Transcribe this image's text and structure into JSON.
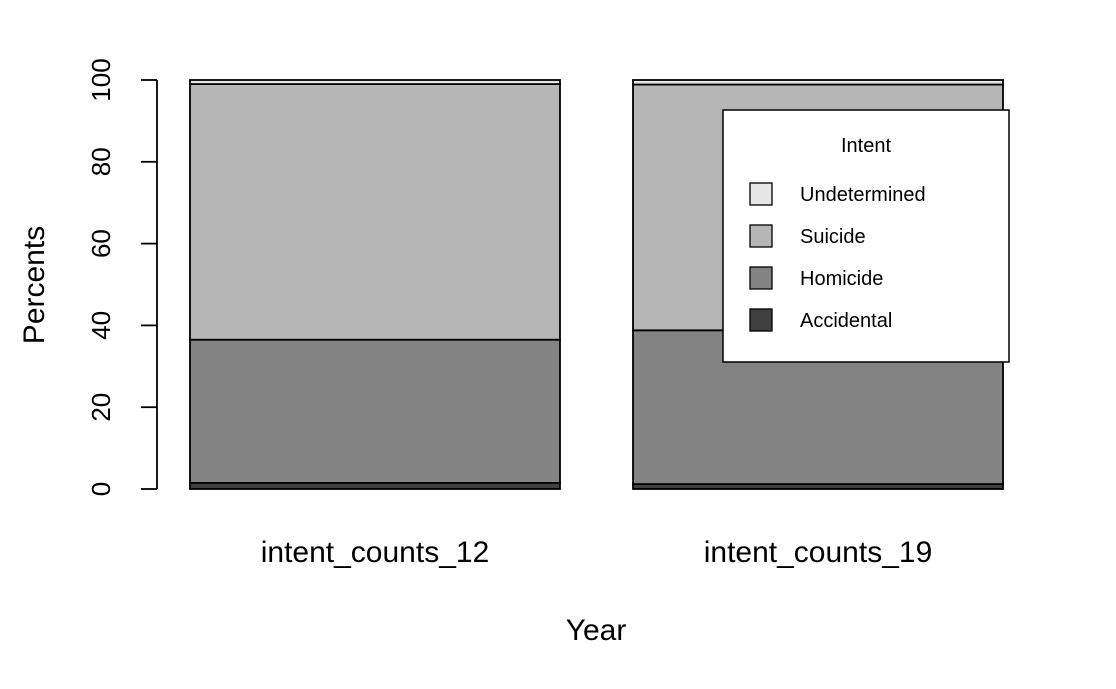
{
  "chart_data": {
    "type": "bar",
    "stacked": true,
    "title": "",
    "xlabel": "Year",
    "ylabel": "Percents",
    "ylim": [
      0,
      100
    ],
    "yticks": [
      0,
      20,
      40,
      60,
      80,
      100
    ],
    "categories": [
      "intent_counts_12",
      "intent_counts_19"
    ],
    "series": [
      {
        "name": "Accidental",
        "color": "#404040",
        "values": [
          1.5,
          1.2
        ]
      },
      {
        "name": "Homicide",
        "color": "#838383",
        "values": [
          35.0,
          37.6
        ]
      },
      {
        "name": "Suicide",
        "color": "#b6b6b6",
        "values": [
          62.5,
          60.1
        ]
      },
      {
        "name": "Undetermined",
        "color": "#e6e6e6",
        "values": [
          1.0,
          1.1
        ]
      }
    ],
    "legend": {
      "title": "Intent",
      "placement": "top-right",
      "order": [
        "Undetermined",
        "Suicide",
        "Homicide",
        "Accidental"
      ]
    },
    "grid": false
  }
}
